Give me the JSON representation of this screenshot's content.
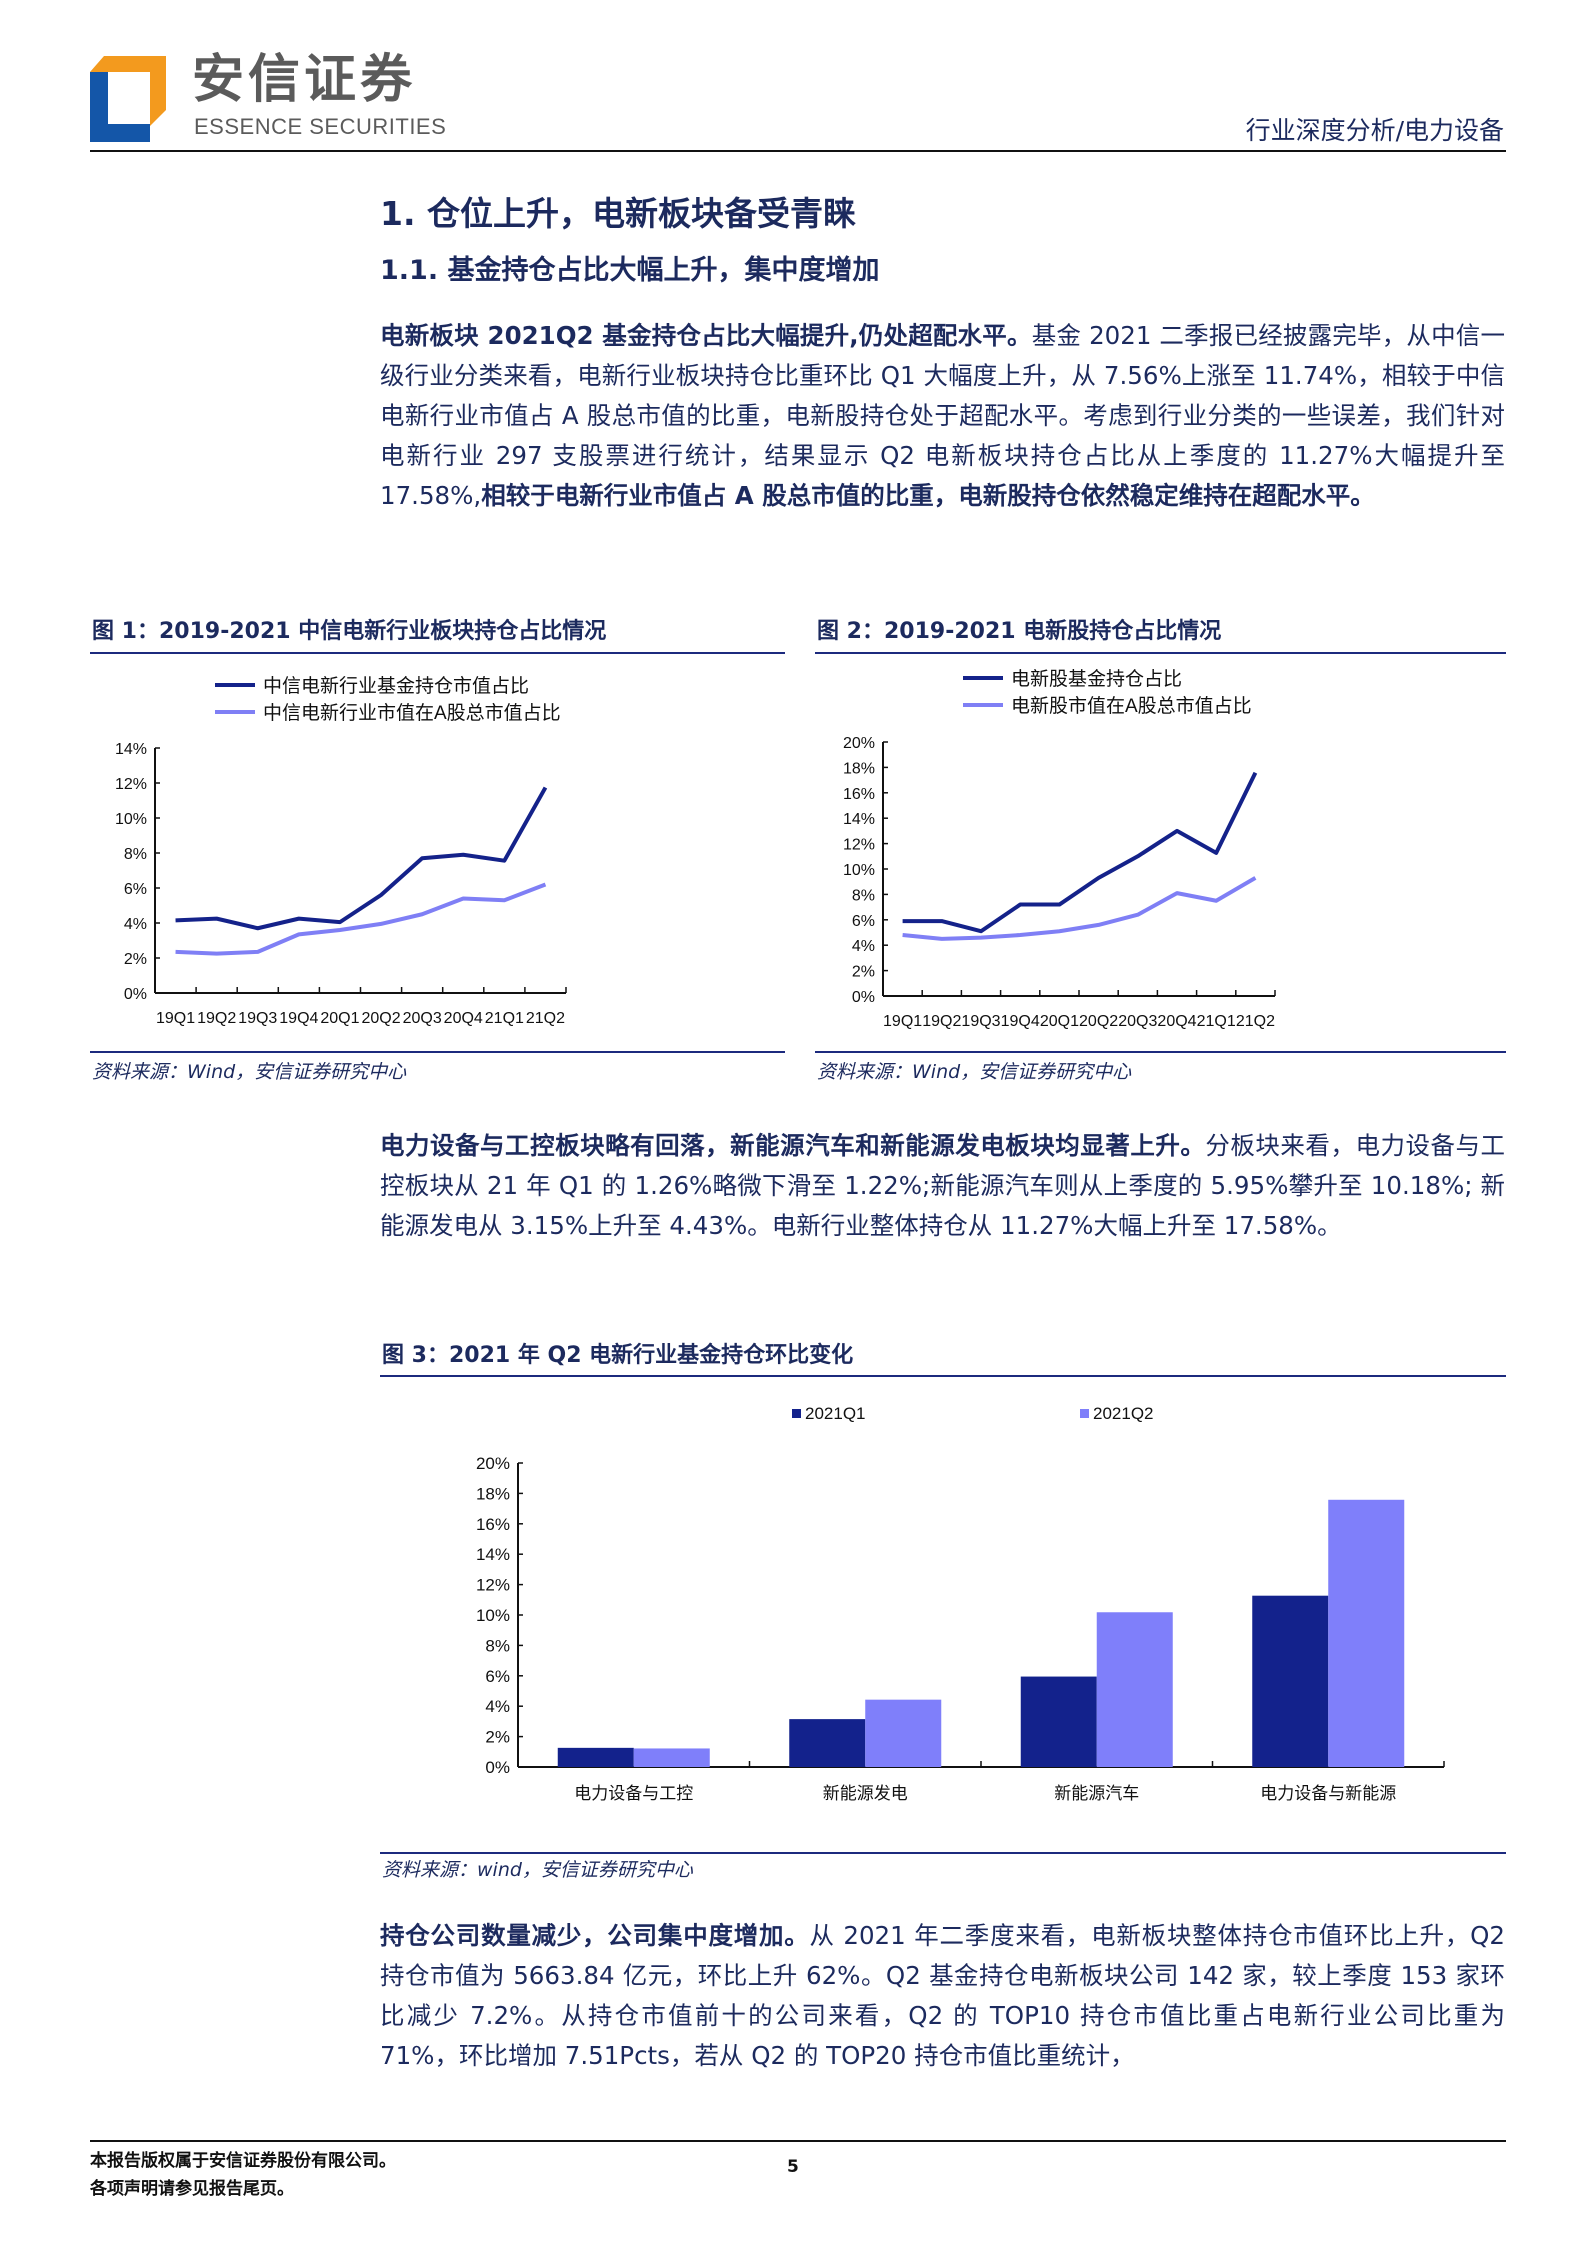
{
  "header": {
    "logo_cn": "安信证券",
    "logo_en": "ESSENCE SECURITIES",
    "report_type": "行业深度分析/电力设备",
    "logo_colors": {
      "blue": "#1456a8",
      "orange": "#f39a1e"
    }
  },
  "section": {
    "h1": "1. 仓位上升，电新板块备受青睐",
    "h2": "1.1. 基金持仓占比大幅上升，集中度增加"
  },
  "paragraphs": [
    {
      "bold_lead": "电新板块 2021Q2 基金持仓占比大幅提升,仍处超配水平。",
      "text": "基金 2021 二季报已经披露完毕，从中信一级行业分类来看，电新行业板块持仓比重环比 Q1 大幅度上升，从 7.56%上涨至 11.74%，相较于中信电新行业市值占 A 股总市值的比重，电新股持仓处于超配水平。考虑到行业分类的一些误差，我们针对电新行业 297 支股票进行统计，结果显示 Q2 电新板块持仓占比从上季度的 11.27%大幅提升至 17.58%,",
      "bold_tail": "相较于电新行业市值占 A 股总市值的比重，电新股持仓依然稳定维持在超配水平。"
    },
    {
      "bold_lead": "电力设备与工控板块略有回落，新能源汽车和新能源发电板块均显著上升。",
      "text": "分板块来看，电力设备与工控板块从 21 年 Q1 的 1.26%略微下滑至 1.22%;新能源汽车则从上季度的 5.95%攀升至 10.18%; 新能源发电从 3.15%上升至 4.43%。电新行业整体持仓从 11.27%大幅上升至 17.58%。",
      "bold_tail": ""
    },
    {
      "bold_lead": "持仓公司数量减少，公司集中度增加。",
      "text": "从 2021 年二季度来看，电新板块整体持仓市值环比上升，Q2 持仓市值为 5663.84 亿元，环比上升 62%。Q2 基金持仓电新板块公司 142 家，较上季度 153 家环比减少 7.2%。从持仓市值前十的公司来看，Q2 的 TOP10 持仓市值比重占电新行业公司比重为 71%，环比增加 7.51Pcts，若从 Q2 的 TOP20 持仓市值比重统计，",
      "bold_tail": ""
    }
  ],
  "figures": [
    {
      "title": "图 1：2019-2021 中信电新行业板块持仓占比情况",
      "source": "资料来源：Wind，安信证券研究中心"
    },
    {
      "title": "图 2：2019-2021 电新股持仓占比情况",
      "source": "资料来源：Wind，安信证券研究中心"
    },
    {
      "title": "图 3：2021 年 Q2 电新行业基金持仓环比变化",
      "source": "资料来源：wind，安信证券研究中心"
    }
  ],
  "chart_data": [
    {
      "type": "line",
      "categories": [
        "19Q1",
        "19Q2",
        "19Q3",
        "19Q4",
        "20Q1",
        "20Q2",
        "20Q3",
        "20Q4",
        "21Q1",
        "21Q2"
      ],
      "yticks": [
        "0%",
        "2%",
        "4%",
        "6%",
        "8%",
        "10%",
        "12%",
        "14%"
      ],
      "ylim": [
        0,
        14
      ],
      "legend": "top",
      "series": [
        {
          "name": "中信电新行业基金持仓市值占比",
          "color": "#14228a",
          "values": [
            4.15,
            4.25,
            3.7,
            4.25,
            4.05,
            5.6,
            7.7,
            7.9,
            7.56,
            11.74
          ]
        },
        {
          "name": "中信电新行业市值在A股总市值占比",
          "color": "#7f7ff5",
          "values": [
            2.35,
            2.25,
            2.35,
            3.35,
            3.6,
            3.95,
            4.5,
            5.4,
            5.3,
            6.2
          ]
        }
      ]
    },
    {
      "type": "line",
      "categories": [
        "19Q1",
        "19Q2",
        "19Q3",
        "19Q4",
        "20Q1",
        "20Q2",
        "20Q3",
        "20Q4",
        "21Q1",
        "21Q2"
      ],
      "yticks": [
        "0%",
        "2%",
        "4%",
        "6%",
        "8%",
        "10%",
        "12%",
        "14%",
        "16%",
        "18%",
        "20%"
      ],
      "ylim": [
        0,
        20
      ],
      "legend": "top",
      "series": [
        {
          "name": "电新股基金持仓占比",
          "color": "#14228a",
          "values": [
            5.9,
            5.9,
            5.1,
            7.2,
            7.2,
            9.3,
            11.0,
            13.0,
            11.27,
            17.58
          ]
        },
        {
          "name": "电新股市值在A股总市值占比",
          "color": "#7f7ff5",
          "values": [
            4.8,
            4.5,
            4.6,
            4.8,
            5.1,
            5.6,
            6.4,
            8.1,
            7.5,
            9.3
          ]
        }
      ]
    },
    {
      "type": "bar",
      "categories": [
        "电力设备与工控",
        "新能源发电",
        "新能源汽车",
        "电力设备与新能源"
      ],
      "yticks": [
        "0%",
        "2%",
        "4%",
        "6%",
        "8%",
        "10%",
        "12%",
        "14%",
        "16%",
        "18%",
        "20%"
      ],
      "ylim": [
        0,
        20
      ],
      "legend": "top",
      "series": [
        {
          "name": "2021Q1",
          "color": "#13228c",
          "values": [
            1.26,
            3.15,
            5.95,
            11.27
          ]
        },
        {
          "name": "2021Q2",
          "color": "#7f7ffa",
          "values": [
            1.22,
            4.43,
            10.18,
            17.58
          ]
        }
      ]
    }
  ],
  "footer": {
    "line1": "本报告版权属于安信证券股份有限公司。",
    "line2": "各项声明请参见报告尾页。",
    "page_number": "5"
  }
}
